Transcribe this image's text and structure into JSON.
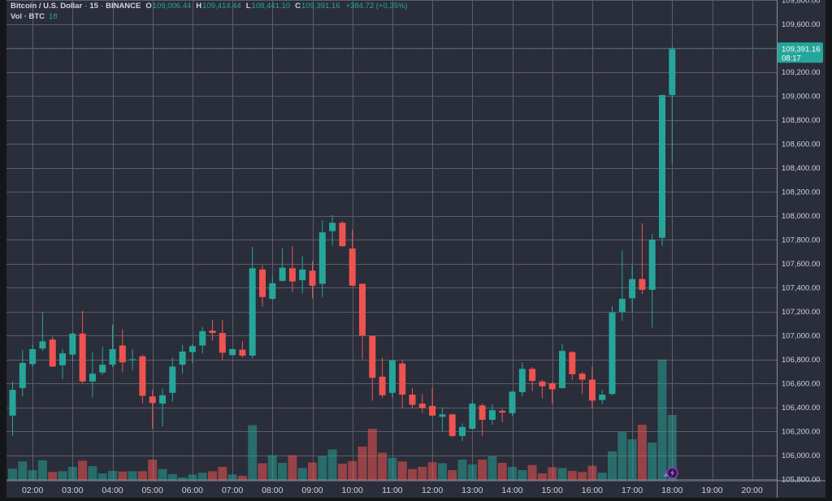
{
  "legend": {
    "symbol": "Bitcoin / U.S. Dollar",
    "separator": "·",
    "interval": "15",
    "exchange": "BINANCE",
    "ohlc": [
      {
        "key": "O",
        "value": "109,006.44"
      },
      {
        "key": "H",
        "value": "109,414.44"
      },
      {
        "key": "L",
        "value": "108,441.10"
      },
      {
        "key": "C",
        "value": "109,391.16"
      }
    ],
    "change": "+384.72 (+0.35%)",
    "volume_label": "Vol · BTC",
    "volume_value": "18"
  },
  "icons": {
    "overlay_badge": "lightning-bolt-icon",
    "overlay_sparkle": "sparkle-icon"
  },
  "chart_data": {
    "type": "candlestick",
    "title": "Bitcoin / U.S. Dollar · 15 · BINANCE",
    "xlabel": "",
    "ylabel": "",
    "ylim": [
      105800,
      109800
    ],
    "y_grid_step": 200,
    "grid": true,
    "legend_position": "top-left",
    "colors": {
      "background": "#2a2d3a",
      "frame": "#15161a",
      "grid": "#5c5f6a",
      "axis_line": "#8c8f98",
      "text": "#d1d4dc",
      "up": "#26a69a",
      "down": "#ef5350",
      "up_volume": "rgba(38,166,154,0.52)",
      "down_volume": "rgba(239,83,80,0.55)",
      "badge_ring": "#9c3bd1",
      "badge_bolt": "#d94cf0"
    },
    "y_ticks": [
      {
        "value": 109800,
        "label": "109,800.00"
      },
      {
        "value": 109600,
        "label": "109,600.00"
      },
      {
        "value": 109200,
        "label": "109,200.00"
      },
      {
        "value": 109000,
        "label": "109,000.00"
      },
      {
        "value": 108800,
        "label": "108,800.00"
      },
      {
        "value": 108600,
        "label": "108,600.00"
      },
      {
        "value": 108400,
        "label": "108,400.00"
      },
      {
        "value": 108200,
        "label": "108,200.00"
      },
      {
        "value": 108000,
        "label": "108,000.00"
      },
      {
        "value": 107800,
        "label": "107,800.00"
      },
      {
        "value": 107600,
        "label": "107,600.00"
      },
      {
        "value": 107400,
        "label": "107,400.00"
      },
      {
        "value": 107200,
        "label": "107,200.00"
      },
      {
        "value": 107000,
        "label": "107,000.00"
      },
      {
        "value": 106800,
        "label": "106,800.00"
      },
      {
        "value": 106600,
        "label": "106,600.00"
      },
      {
        "value": 106400,
        "label": "106,400.00"
      },
      {
        "value": 106200,
        "label": "106,200.00"
      },
      {
        "value": 106000,
        "label": "106,000.00"
      },
      {
        "value": 105800,
        "label": "105,800.00"
      }
    ],
    "x_ticks": [
      {
        "label": "02:00",
        "index": 2
      },
      {
        "label": "03:00",
        "index": 6
      },
      {
        "label": "04:00",
        "index": 10
      },
      {
        "label": "05:00",
        "index": 14
      },
      {
        "label": "06:00",
        "index": 18
      },
      {
        "label": "07:00",
        "index": 22
      },
      {
        "label": "08:00",
        "index": 26
      },
      {
        "label": "09:00",
        "index": 30
      },
      {
        "label": "10:00",
        "index": 34
      },
      {
        "label": "11:00",
        "index": 38
      },
      {
        "label": "12:00",
        "index": 42
      },
      {
        "label": "13:00",
        "index": 46
      },
      {
        "label": "14:00",
        "index": 50
      },
      {
        "label": "15:00",
        "index": 54
      },
      {
        "label": "16:00",
        "index": 58
      },
      {
        "label": "17:00",
        "index": 62
      },
      {
        "label": "18:00",
        "index": 66
      },
      {
        "label": "19:00",
        "index": 70
      },
      {
        "label": "20:00",
        "index": 74
      }
    ],
    "last_price": {
      "value": 109391.16,
      "label": "109,391.16",
      "countdown": "08:17"
    },
    "columns": [
      "time",
      "open",
      "high",
      "low",
      "close",
      "volume_btc"
    ],
    "candles": [
      [
        "01:30",
        106330,
        106615,
        106160,
        106545,
        3.2
      ],
      [
        "01:45",
        106560,
        106880,
        106490,
        106770,
        5.2
      ],
      [
        "02:00",
        106760,
        106920,
        106740,
        106885,
        2.8
      ],
      [
        "02:15",
        106890,
        107190,
        106870,
        106950,
        5.5
      ],
      [
        "02:30",
        106965,
        106990,
        106735,
        106740,
        2.3
      ],
      [
        "02:45",
        106750,
        106885,
        106635,
        106850,
        2.5
      ],
      [
        "03:00",
        106840,
        107025,
        106780,
        107015,
        3.7
      ],
      [
        "03:15",
        107015,
        107205,
        106600,
        106615,
        5.4
      ],
      [
        "03:30",
        106615,
        106860,
        106480,
        106680,
        3.9
      ],
      [
        "03:45",
        106690,
        106905,
        106670,
        106755,
        1.9
      ],
      [
        "04:00",
        106755,
        107090,
        106735,
        106885,
        2.6
      ],
      [
        "04:15",
        106915,
        107050,
        106690,
        106775,
        2.4
      ],
      [
        "04:30",
        106795,
        106885,
        106710,
        106800,
        2.5
      ],
      [
        "04:45",
        106825,
        106840,
        106430,
        106495,
        2.5
      ],
      [
        "05:00",
        106490,
        106545,
        106220,
        106435,
        5.7
      ],
      [
        "05:15",
        106430,
        106555,
        106240,
        106500,
        3.1
      ],
      [
        "05:30",
        106520,
        106815,
        106445,
        106740,
        1.7
      ],
      [
        "05:45",
        106755,
        106920,
        106680,
        106865,
        0.8
      ],
      [
        "06:00",
        106860,
        106925,
        106770,
        106910,
        1.6
      ],
      [
        "06:15",
        106915,
        107070,
        106850,
        107035,
        2.1
      ],
      [
        "06:30",
        107040,
        107130,
        106955,
        107020,
        2.5
      ],
      [
        "06:45",
        107020,
        107130,
        106795,
        106855,
        3.7
      ],
      [
        "07:00",
        106835,
        106890,
        106830,
        106885,
        1.6
      ],
      [
        "07:15",
        106880,
        106955,
        106815,
        106830,
        1.2
      ],
      [
        "07:30",
        106830,
        107740,
        106805,
        107560,
        15.2
      ],
      [
        "07:45",
        107550,
        107585,
        107240,
        107320,
        4.7
      ],
      [
        "08:00",
        107305,
        107500,
        107295,
        107435,
        6.9
      ],
      [
        "08:15",
        107455,
        107725,
        107450,
        107565,
        4.8
      ],
      [
        "08:30",
        107560,
        107745,
        107360,
        107450,
        6.9
      ],
      [
        "08:45",
        107460,
        107660,
        107350,
        107550,
        3.4
      ],
      [
        "09:00",
        107540,
        107620,
        107310,
        107415,
        4.9
      ],
      [
        "09:15",
        107430,
        107960,
        107320,
        107860,
        6.6
      ],
      [
        "09:30",
        107870,
        108005,
        107750,
        107940,
        8.5
      ],
      [
        "09:45",
        107940,
        107955,
        107740,
        107745,
        4.6
      ],
      [
        "10:00",
        107725,
        107880,
        107410,
        107415,
        5.3
      ],
      [
        "10:15",
        107430,
        107435,
        106800,
        107000,
        9.3
      ],
      [
        "10:30",
        106995,
        107000,
        106455,
        106645,
        14.2
      ],
      [
        "10:45",
        106655,
        106815,
        106480,
        106500,
        7.6
      ],
      [
        "11:00",
        106520,
        106795,
        106480,
        106790,
        6.2
      ],
      [
        "11:15",
        106765,
        106795,
        106390,
        106505,
        5.2
      ],
      [
        "11:30",
        106505,
        106560,
        106390,
        106420,
        3.1
      ],
      [
        "11:45",
        106430,
        106510,
        106350,
        106395,
        3.7
      ],
      [
        "12:00",
        106410,
        106560,
        106325,
        106330,
        5.0
      ],
      [
        "12:15",
        106320,
        106400,
        106200,
        106340,
        4.7
      ],
      [
        "12:30",
        106340,
        106345,
        106150,
        106160,
        2.8
      ],
      [
        "12:45",
        106160,
        106265,
        106115,
        106235,
        5.7
      ],
      [
        "13:00",
        106220,
        106460,
        106215,
        106430,
        4.4
      ],
      [
        "13:15",
        106415,
        106430,
        106160,
        106295,
        5.7
      ],
      [
        "13:30",
        106295,
        106425,
        106255,
        106375,
        6.6
      ],
      [
        "13:45",
        106370,
        106385,
        106275,
        106355,
        4.8
      ],
      [
        "14:00",
        106350,
        106535,
        106330,
        106530,
        3.7
      ],
      [
        "14:15",
        106525,
        106775,
        106490,
        106720,
        2.8
      ],
      [
        "14:30",
        106720,
        106735,
        106535,
        106620,
        4.2
      ],
      [
        "14:45",
        106615,
        106630,
        106475,
        106575,
        1.9
      ],
      [
        "15:00",
        106600,
        106610,
        106430,
        106550,
        3.6
      ],
      [
        "15:15",
        106560,
        106930,
        106555,
        106870,
        3.4
      ],
      [
        "15:30",
        106860,
        106870,
        106630,
        106675,
        2.6
      ],
      [
        "15:45",
        106680,
        106695,
        106510,
        106630,
        2.3
      ],
      [
        "16:00",
        106630,
        106740,
        106390,
        106455,
        4.0
      ],
      [
        "16:15",
        106460,
        106545,
        106425,
        106505,
        2.1
      ],
      [
        "16:30",
        106510,
        107245,
        106500,
        107190,
        8.0
      ],
      [
        "16:45",
        107195,
        107710,
        107120,
        107305,
        13.3
      ],
      [
        "17:00",
        107310,
        107585,
        107200,
        107470,
        11.3
      ],
      [
        "17:15",
        107470,
        107935,
        107345,
        107380,
        15.3
      ],
      [
        "17:30",
        107380,
        107845,
        107065,
        107800,
        10.4
      ],
      [
        "17:45",
        107815,
        109010,
        107745,
        109006.44,
        33.3
      ],
      [
        "18:00",
        109006.44,
        109414.44,
        108441.1,
        109391.16,
        18
      ]
    ]
  }
}
